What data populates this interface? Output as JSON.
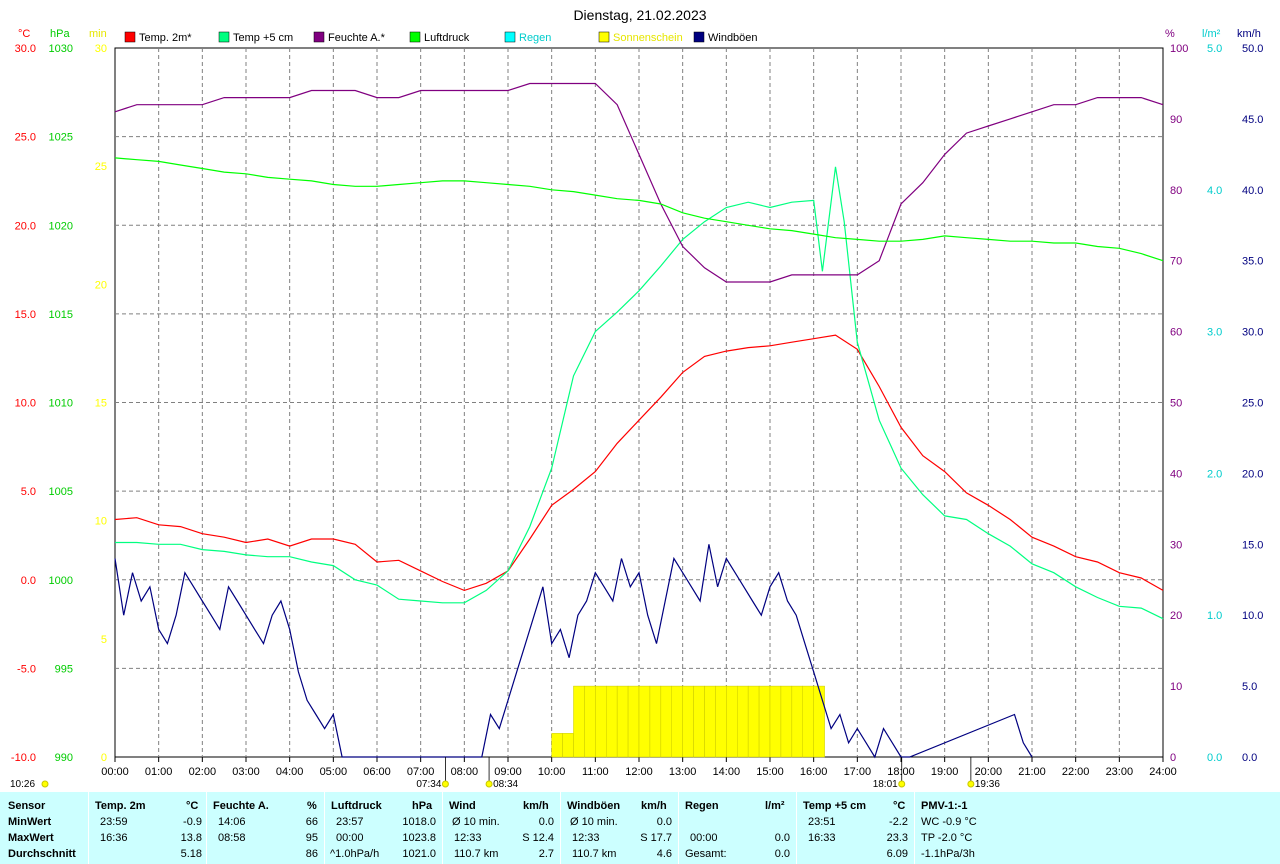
{
  "chart_data": {
    "type": "line",
    "title": "Dienstag, 21.02.2023",
    "x_ticks": [
      "00:00",
      "01:00",
      "02:00",
      "03:00",
      "04:00",
      "05:00",
      "06:00",
      "07:00",
      "08:00",
      "09:00",
      "10:00",
      "11:00",
      "12:00",
      "13:00",
      "14:00",
      "15:00",
      "16:00",
      "17:00",
      "18:00",
      "19:00",
      "20:00",
      "21:00",
      "22:00",
      "23:00",
      "24:00"
    ],
    "axes": {
      "temp": {
        "unit": "°C",
        "color": "#ff0000",
        "min": -10,
        "max": 30,
        "ticks": [
          "30.0",
          "25.0",
          "20.0",
          "15.0",
          "10.0",
          "5.0",
          "0.0",
          "-5.0",
          "-10.0"
        ]
      },
      "pressure": {
        "unit": "hPa",
        "color": "#00cc00",
        "min": 990,
        "max": 1030,
        "ticks": [
          "1030",
          "1025",
          "1020",
          "1015",
          "1010",
          "1005",
          "1000",
          "995",
          "990"
        ]
      },
      "minutes": {
        "unit": "min",
        "color": "#ffff00",
        "min": 0,
        "max": 30,
        "ticks": [
          "30",
          "25",
          "20",
          "15",
          "10",
          "5",
          "0"
        ]
      },
      "humidity": {
        "unit": "%",
        "color": "#800080",
        "min": 0,
        "max": 100,
        "ticks": [
          "100",
          "90",
          "80",
          "70",
          "60",
          "50",
          "40",
          "30",
          "20",
          "10",
          "0"
        ]
      },
      "rain": {
        "unit": "l/m²",
        "color": "#00ffff",
        "min": 0,
        "max": 5,
        "ticks": [
          "5.0",
          "4.0",
          "3.0",
          "2.0",
          "1.0",
          "0.0"
        ]
      },
      "wind": {
        "unit": "km/h",
        "color": "#000080",
        "min": 0,
        "max": 50,
        "ticks": [
          "50.0",
          "45.0",
          "40.0",
          "35.0",
          "30.0",
          "25.0",
          "20.0",
          "15.0",
          "10.0",
          "5.0",
          "0.0"
        ]
      }
    },
    "legend": [
      {
        "name": "Temp. 2m*",
        "color": "#ff0000"
      },
      {
        "name": "Temp +5 cm",
        "color": "#00ff80"
      },
      {
        "name": "Feuchte A.*",
        "color": "#800080"
      },
      {
        "name": "Luftdruck",
        "color": "#00ff00"
      },
      {
        "name": "Regen",
        "color": "#00ffff"
      },
      {
        "name": "Sonnenschein",
        "color": "#ffff00"
      },
      {
        "name": "Windböen",
        "color": "#000080"
      }
    ],
    "sun_marks": {
      "sunrise": "07:34",
      "civil_dawn": "08:34",
      "sunset": "18:01",
      "civil_dusk": "19:36",
      "now": "10:26"
    },
    "series": [
      {
        "name": "Temp. 2m*",
        "axis": "temp",
        "color": "#ff0000",
        "x": [
          0,
          0.5,
          1,
          1.5,
          2,
          2.5,
          3,
          3.5,
          4,
          4.5,
          5,
          5.5,
          6,
          6.5,
          7,
          7.5,
          8,
          8.5,
          9,
          9.5,
          10,
          10.5,
          11,
          11.5,
          12,
          12.5,
          13,
          13.5,
          14,
          14.5,
          15,
          15.5,
          16,
          16.5,
          17,
          17.5,
          18,
          18.5,
          19,
          19.5,
          20,
          20.5,
          21,
          21.5,
          22,
          22.5,
          23,
          23.5,
          24
        ],
        "values": [
          3.4,
          3.5,
          3.1,
          3.0,
          2.6,
          2.4,
          2.1,
          2.3,
          1.9,
          2.3,
          2.3,
          2.0,
          1.0,
          1.1,
          0.5,
          -0.1,
          -0.6,
          -0.2,
          0.5,
          2.3,
          4.2,
          5.1,
          6.1,
          7.7,
          9.0,
          10.3,
          11.7,
          12.6,
          12.9,
          13.1,
          13.2,
          13.4,
          13.6,
          13.8,
          13.0,
          10.9,
          8.6,
          7.0,
          6.1,
          4.9,
          4.2,
          3.4,
          2.4,
          1.9,
          1.3,
          1.0,
          0.4,
          0.1,
          -0.6
        ]
      },
      {
        "name": "Temp +5 cm",
        "axis": "temp",
        "color": "#00ff80",
        "x": [
          0,
          0.5,
          1,
          1.5,
          2,
          2.5,
          3,
          3.5,
          4,
          4.5,
          5,
          5.5,
          6,
          6.5,
          7,
          7.5,
          8,
          8.5,
          9,
          9.5,
          10,
          10.5,
          11,
          11.5,
          12,
          12.5,
          13,
          13.5,
          14,
          14.5,
          15,
          15.5,
          16,
          16.2,
          16.5,
          16.7,
          17,
          17.5,
          18,
          18.5,
          19,
          19.5,
          20,
          20.5,
          21,
          21.5,
          22,
          22.5,
          23,
          23.5,
          24
        ],
        "values": [
          2.1,
          2.1,
          2.0,
          2.0,
          1.7,
          1.6,
          1.4,
          1.3,
          1.3,
          1.0,
          0.8,
          0.0,
          -0.3,
          -1.1,
          -1.2,
          -1.3,
          -1.3,
          -0.6,
          0.5,
          3.0,
          6.3,
          11.5,
          14.0,
          15.1,
          16.3,
          17.7,
          19.2,
          20.2,
          21.0,
          21.3,
          21.0,
          21.3,
          21.4,
          17.4,
          23.3,
          20.2,
          13.4,
          9.0,
          6.3,
          4.8,
          3.6,
          3.4,
          2.6,
          1.9,
          0.9,
          0.4,
          -0.4,
          -1.0,
          -1.5,
          -1.6,
          -2.2
        ]
      },
      {
        "name": "Feuchte A.*",
        "axis": "humidity",
        "color": "#800080",
        "x": [
          0,
          0.5,
          1,
          1.5,
          2,
          2.5,
          3,
          3.5,
          4,
          4.5,
          5,
          5.5,
          6,
          6.5,
          7,
          7.5,
          8,
          8.5,
          9,
          9.5,
          10,
          10.5,
          11,
          11.5,
          12,
          12.5,
          13,
          13.5,
          14,
          14.5,
          15,
          15.5,
          16,
          16.5,
          17,
          17.5,
          18,
          18.5,
          19,
          19.5,
          20,
          20.5,
          21,
          21.5,
          22,
          22.5,
          23,
          23.5,
          24
        ],
        "values": [
          91,
          92,
          92,
          92,
          92,
          93,
          93,
          93,
          93,
          94,
          94,
          94,
          93,
          93,
          94,
          94,
          94,
          94,
          94,
          95,
          95,
          95,
          95,
          92,
          85,
          78,
          72,
          69,
          67,
          67,
          67,
          68,
          68,
          68,
          68,
          70,
          78,
          81,
          85,
          88,
          89,
          90,
          91,
          92,
          92,
          93,
          93,
          93,
          92
        ]
      },
      {
        "name": "Luftdruck",
        "axis": "pressure",
        "color": "#00ff00",
        "x": [
          0,
          0.5,
          1,
          1.5,
          2,
          2.5,
          3,
          3.5,
          4,
          4.5,
          5,
          5.5,
          6,
          6.5,
          7,
          7.5,
          8,
          8.5,
          9,
          9.5,
          10,
          10.5,
          11,
          11.5,
          12,
          12.5,
          13,
          13.5,
          14,
          14.5,
          15,
          15.5,
          16,
          16.5,
          17,
          17.5,
          18,
          18.5,
          19,
          19.5,
          20,
          20.5,
          21,
          21.5,
          22,
          22.5,
          23,
          23.5,
          24
        ],
        "values": [
          1023.8,
          1023.7,
          1023.6,
          1023.4,
          1023.2,
          1023.0,
          1022.9,
          1022.7,
          1022.6,
          1022.5,
          1022.3,
          1022.2,
          1022.2,
          1022.3,
          1022.4,
          1022.5,
          1022.5,
          1022.4,
          1022.3,
          1022.2,
          1022.0,
          1021.9,
          1021.7,
          1021.5,
          1021.4,
          1021.2,
          1020.7,
          1020.4,
          1020.2,
          1020.0,
          1019.8,
          1019.7,
          1019.5,
          1019.3,
          1019.2,
          1019.1,
          1019.1,
          1019.2,
          1019.4,
          1019.3,
          1019.2,
          1019.1,
          1019.1,
          1019.0,
          1019.0,
          1018.8,
          1018.7,
          1018.4,
          1018.0
        ]
      },
      {
        "name": "Windböen",
        "axis": "wind",
        "color": "#000080",
        "x": [
          0,
          0.2,
          0.4,
          0.6,
          0.8,
          1,
          1.2,
          1.4,
          1.6,
          1.8,
          2,
          2.2,
          2.4,
          2.6,
          2.8,
          3,
          3.2,
          3.4,
          3.6,
          3.8,
          4,
          4.2,
          4.4,
          4.6,
          4.8,
          5,
          5.2,
          8.4,
          8.6,
          8.8,
          9,
          9.2,
          9.4,
          9.6,
          9.8,
          10,
          10.2,
          10.4,
          10.6,
          10.8,
          11,
          11.2,
          11.4,
          11.6,
          11.8,
          12,
          12.2,
          12.4,
          12.6,
          12.8,
          13,
          13.2,
          13.4,
          13.6,
          13.8,
          14,
          14.2,
          14.4,
          14.6,
          14.8,
          15,
          15.2,
          15.4,
          15.6,
          15.8,
          16,
          16.2,
          16.4,
          16.6,
          16.8,
          17,
          17.2,
          17.4,
          17.6,
          17.8,
          18,
          18.2,
          20.6,
          20.8,
          21
        ],
        "values": [
          14,
          10,
          13,
          11,
          12,
          9,
          8,
          10,
          13,
          12,
          11,
          10,
          9,
          12,
          11,
          10,
          9,
          8,
          10,
          11,
          9,
          6,
          4,
          3,
          2,
          3,
          0,
          0,
          3,
          2,
          4,
          6,
          8,
          10,
          12,
          8,
          9,
          7,
          10,
          11,
          13,
          12,
          11,
          14,
          12,
          13,
          10,
          8,
          11,
          14,
          13,
          12,
          11,
          15,
          12,
          14,
          13,
          12,
          11,
          10,
          12,
          13,
          11,
          10,
          8,
          6,
          4,
          2,
          3,
          1,
          2,
          1,
          0,
          2,
          1,
          0,
          0,
          3,
          1,
          0
        ]
      },
      {
        "name": "Sonnenschein",
        "axis": "minutes",
        "color": "#ffff00",
        "x": [
          10.0,
          10.25,
          10.5,
          10.75,
          11.0,
          11.25,
          11.5,
          11.75,
          12.0,
          12.25,
          12.5,
          12.75,
          13.0,
          13.25,
          13.5,
          13.75,
          14.0,
          14.25,
          14.5,
          14.75,
          15.0,
          15.25,
          15.5,
          15.75,
          16.0
        ],
        "values": [
          1,
          1,
          3,
          3,
          3,
          3,
          3,
          3,
          3,
          3,
          3,
          3,
          3,
          3,
          3,
          3,
          3,
          3,
          3,
          3,
          3,
          3,
          3,
          3,
          3
        ]
      }
    ]
  },
  "table": {
    "headers": {
      "sensor": "Sensor",
      "temp": "Temp. 2m",
      "temp_unit": "°C",
      "hum": "Feuchte A.",
      "hum_unit": "%",
      "press": "Luftdruck",
      "press_unit": "hPa",
      "wind": "Wind",
      "wind_unit": "km/h",
      "gust": "Windböen",
      "gust_unit": "km/h",
      "rain": "Regen",
      "rain_unit": "l/m²",
      "t5": "Temp +5 cm",
      "t5_unit": "°C",
      "pmv": "PMV-1:-1"
    },
    "rows": [
      {
        "label": "MinWert",
        "temp_time": "23:59",
        "temp_val": "-0.9",
        "hum_time": "14:06",
        "hum_val": "66",
        "press_time": "23:57",
        "press_val": "1018.0",
        "wind_a": "Ø 10 min.",
        "wind_b": "0.0",
        "gust_a": "Ø 10 min.",
        "gust_b": "0.0",
        "rain_a": "",
        "rain_b": "",
        "t5_time": "23:51",
        "t5_val": "-2.2",
        "pmv": "WC -0.9 °C"
      },
      {
        "label": "MaxWert",
        "temp_time": "16:36",
        "temp_val": "13.8",
        "hum_time": "08:58",
        "hum_val": "95",
        "press_time": "00:00",
        "press_val": "1023.8",
        "wind_a": "12:33",
        "wind_b": "S 12.4",
        "gust_a": "12:33",
        "gust_b": "S 17.7",
        "rain_a": "00:00",
        "rain_b": "0.0",
        "t5_time": "16:33",
        "t5_val": "23.3",
        "pmv": "TP -2.0 °C"
      },
      {
        "label": "Durchschnitt",
        "temp_time": "",
        "temp_val": "5.18",
        "hum_time": "",
        "hum_val": "86",
        "press_time": "^1.0hPa/h",
        "press_val": "1021.0",
        "wind_a": "110.7 km",
        "wind_b": "2.7",
        "gust_a": "110.7 km",
        "gust_b": "4.6",
        "rain_a": "Gesamt:",
        "rain_b": "0.0",
        "t5_time": "",
        "t5_val": "6.09",
        "pmv": "-1.1hPa/3h"
      }
    ]
  }
}
